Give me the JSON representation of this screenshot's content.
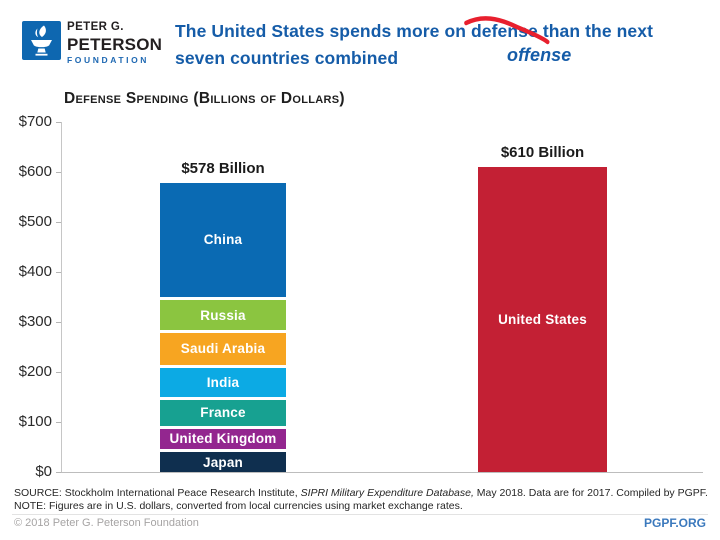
{
  "brand": {
    "logo_lines": [
      "PETER G.",
      "PETERSON",
      "FOUNDATION"
    ],
    "logo_color": "#0e67b0",
    "wordmark_blue": "#1e68b2"
  },
  "header": {
    "title_part1": "The United States spends more on",
    "struck_word": "defense",
    "title_part2": "than the next",
    "title_line2": "seven countries combined",
    "annotation": "offense",
    "title_color": "#155ca8",
    "strike_color": "#e8202e"
  },
  "chart_data": {
    "type": "bar",
    "subtype": "stacked-vs-single",
    "title": "Defense Spending (Billions of Dollars)",
    "grid": false,
    "legend": "none (labels inside segments)",
    "y_axis": {
      "min": 0,
      "max": 700,
      "step": 100,
      "ylim": [
        0,
        700
      ],
      "tick_labels": [
        "$0",
        "$100",
        "$200",
        "$300",
        "$400",
        "$500",
        "$600",
        "$700"
      ]
    },
    "bars": [
      {
        "name": "Next seven countries combined",
        "total": 578,
        "total_label": "$578 Billion",
        "segments": [
          {
            "label": "Japan",
            "value": 45.4,
            "color": "#0f2f4f"
          },
          {
            "label": "United Kingdom",
            "value": 47.2,
            "color": "#93268f"
          },
          {
            "label": "France",
            "value": 57.8,
            "color": "#17a191"
          },
          {
            "label": "India",
            "value": 63.9,
            "color": "#0caae4"
          },
          {
            "label": "Saudi Arabia",
            "value": 69.4,
            "color": "#f7a521"
          },
          {
            "label": "Russia",
            "value": 66.3,
            "color": "#8bc540"
          },
          {
            "label": "China",
            "value": 228.2,
            "color": "#0a6ab3"
          }
        ]
      },
      {
        "name": "United States",
        "total": 610,
        "total_label": "$610 Billion",
        "segments": [
          {
            "label": "United States",
            "value": 610,
            "color": "#c32034"
          }
        ]
      }
    ]
  },
  "footnotes": {
    "source_prefix": "SOURCE: Stockholm International Peace Research Institute, ",
    "source_italic": "SIPRI Military Expenditure Database,",
    "source_suffix": " May 2018. Data are for 2017. Compiled by PGPF.",
    "note": "NOTE: Figures are in U.S. dollars, converted from local currencies using market exchange rates."
  },
  "footer": {
    "copyright": "© 2018 Peter G. Peterson Foundation",
    "site": "PGPF.ORG"
  }
}
